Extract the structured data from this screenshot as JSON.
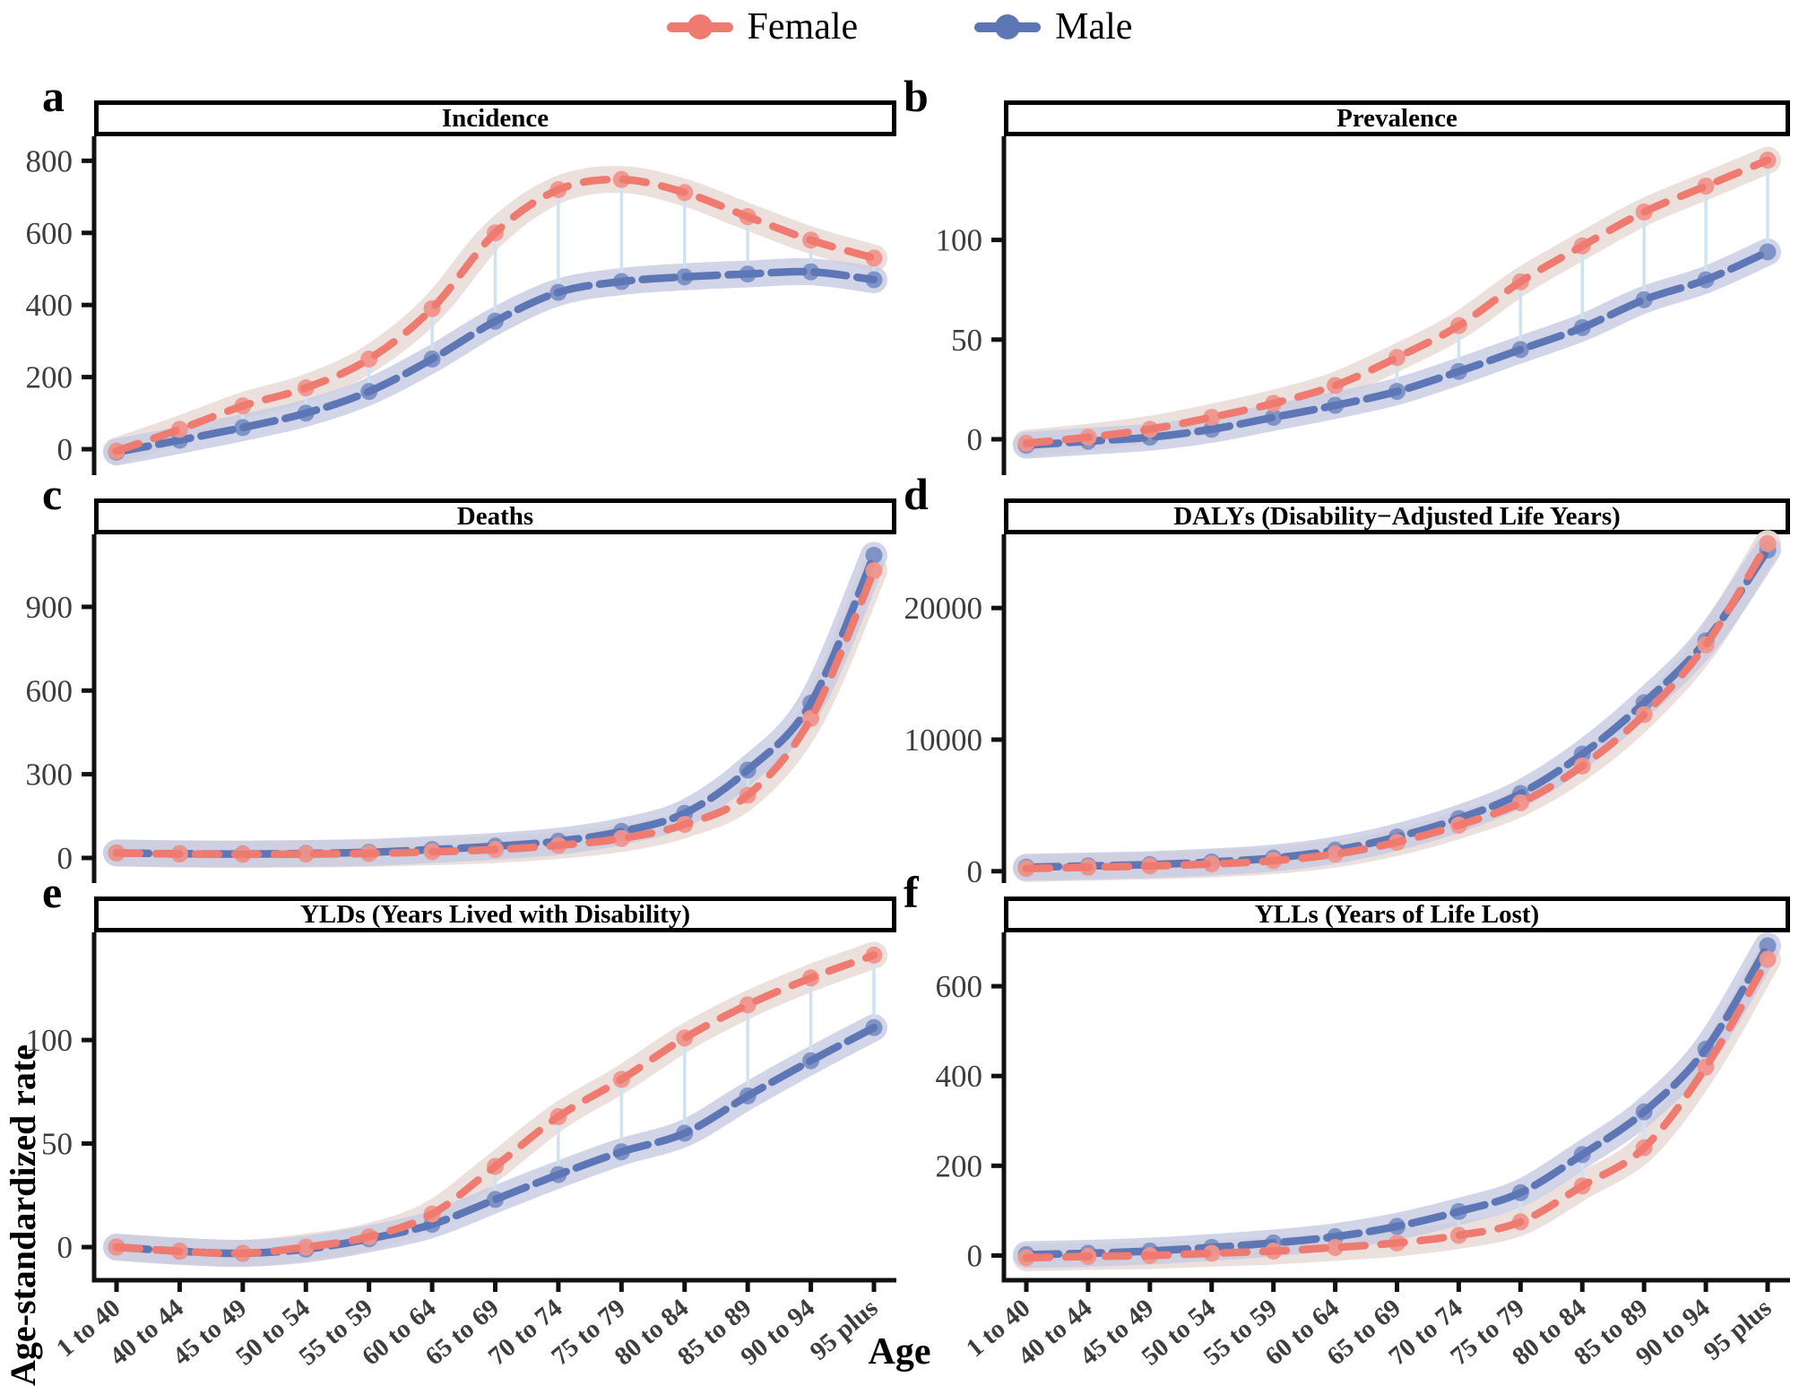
{
  "legend": {
    "items": [
      {
        "label": "Female",
        "color": "#ee7a70"
      },
      {
        "label": "Male",
        "color": "#5d76b6"
      }
    ]
  },
  "axis": {
    "y_label": "Age-standardized rate",
    "x_label": "Age"
  },
  "chart_data": {
    "type": "line",
    "legend_position": "top",
    "grid": false,
    "categories": [
      "1 to 40",
      "40 to 44",
      "45 to 49",
      "50 to 54",
      "55 to 59",
      "60 to 64",
      "65 to 69",
      "70 to 74",
      "75 to 79",
      "80 to 84",
      "85 to 89",
      "90 to 94",
      "95 plus"
    ],
    "style": {
      "female_color": "#ee7a70",
      "female_point_color": "#f0948b",
      "female_ribbon_color": "#ebdedb",
      "male_color": "#5d76b6",
      "male_point_color": "#7b8fc4",
      "male_ribbon_color": "#c7cbe1",
      "connector_color": "#cfe2f1",
      "axis_color": "#111111",
      "tick_label_color": "#3d3d3d"
    },
    "panels": [
      {
        "letter": "a",
        "title": "Incidence",
        "ylim": [
          -72,
          868
        ],
        "yticks": [
          0,
          200,
          400,
          600,
          800
        ],
        "series": [
          {
            "name": "Female",
            "values": [
              -5,
              55,
              120,
              170,
              250,
              390,
              600,
              720,
              748,
              712,
              645,
              580,
              530
            ]
          },
          {
            "name": "Male",
            "values": [
              -8,
              25,
              60,
              100,
              160,
              250,
              355,
              435,
              465,
              478,
              486,
              492,
              470
            ]
          }
        ]
      },
      {
        "letter": "b",
        "title": "Prevalence",
        "ylim": [
          -18,
          152
        ],
        "yticks": [
          0,
          50,
          100
        ],
        "series": [
          {
            "name": "Female",
            "values": [
              -2,
              1,
              5,
              11,
              18,
              27,
              41,
              57,
              79,
              97,
              114,
              127,
              140
            ]
          },
          {
            "name": "Male",
            "values": [
              -3,
              -1,
              1,
              5,
              11,
              17,
              24,
              34,
              45,
              56,
              70,
              80,
              94
            ]
          }
        ]
      },
      {
        "letter": "c",
        "title": "Deaths",
        "ylim": [
          -90,
          1160
        ],
        "yticks": [
          0,
          300,
          600,
          900
        ],
        "series": [
          {
            "name": "Female",
            "values": [
              18,
              14,
              13,
              14,
              16,
              22,
              30,
              45,
              70,
              120,
              225,
              500,
              1030
            ]
          },
          {
            "name": "Male",
            "values": [
              18,
              15,
              14,
              16,
              20,
              30,
              42,
              60,
              95,
              160,
              315,
              555,
              1085
            ]
          }
        ]
      },
      {
        "letter": "d",
        "title": "DALYs (Disability−Adjusted Life Years)",
        "ylim": [
          -900,
          25600
        ],
        "yticks": [
          0,
          10000,
          20000
        ],
        "series": [
          {
            "name": "Female",
            "values": [
              200,
              300,
              400,
              550,
              800,
              1300,
              2200,
              3500,
              5200,
              8000,
              11900,
              17200,
              24900
            ]
          },
          {
            "name": "Male",
            "values": [
              300,
              400,
              500,
              700,
              1000,
              1600,
              2600,
              4000,
              5900,
              8900,
              12800,
              17500,
              24400
            ]
          }
        ]
      },
      {
        "letter": "e",
        "title": "YLDs (Years Lived with Disability)",
        "ylim": [
          -16,
          152
        ],
        "yticks": [
          0,
          50,
          100
        ],
        "series": [
          {
            "name": "Female",
            "values": [
              0,
              -2,
              -3,
              0,
              5,
              16,
              39,
              63,
              81,
              101,
              117,
              130,
              141
            ]
          },
          {
            "name": "Male",
            "values": [
              0,
              -2,
              -3,
              -1,
              4,
              11,
              23,
              35,
              46,
              55,
              73,
              90,
              106
            ]
          }
        ]
      },
      {
        "letter": "f",
        "title": "YLLs (Years of Life Lost)",
        "ylim": [
          -55,
          720
        ],
        "yticks": [
          0,
          200,
          400,
          600
        ],
        "series": [
          {
            "name": "Female",
            "values": [
              -5,
              -2,
              0,
              5,
              10,
              18,
              28,
              45,
              75,
              155,
              240,
              420,
              660
            ]
          },
          {
            "name": "Male",
            "values": [
              2,
              5,
              10,
              18,
              28,
              42,
              65,
              98,
              140,
              225,
              320,
              460,
              690
            ]
          }
        ]
      }
    ]
  }
}
